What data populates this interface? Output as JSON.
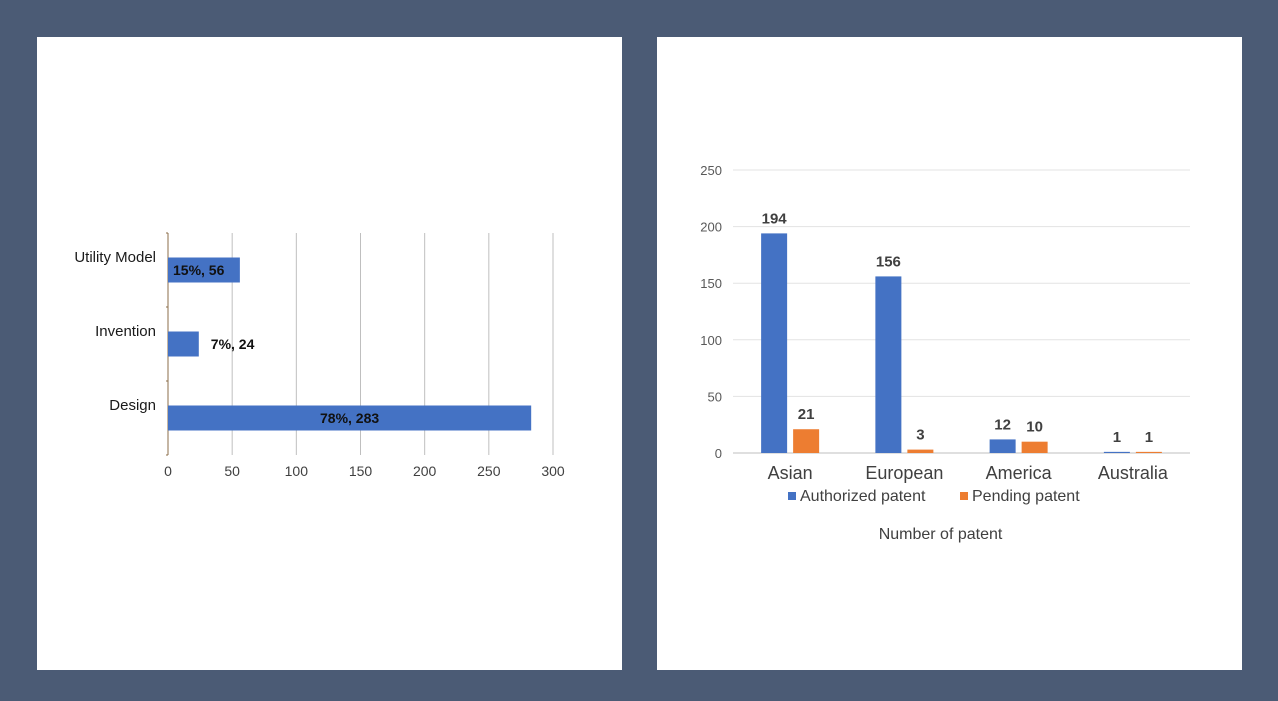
{
  "chart_data": [
    {
      "type": "bar",
      "orientation": "horizontal",
      "title": "",
      "categories": [
        "Utility Model",
        "Invention",
        "Design"
      ],
      "values": [
        56,
        24,
        283
      ],
      "percent_labels": [
        "15%",
        "7%",
        "78%"
      ],
      "data_labels": [
        "15%,  56",
        "7%,  24",
        "78%,  283"
      ],
      "x_ticks": [
        "0",
        "50",
        "100",
        "150",
        "200",
        "250",
        "300"
      ],
      "xlim": [
        0,
        300
      ],
      "grid": true,
      "bar_color": "#4472c4"
    },
    {
      "type": "bar",
      "orientation": "vertical",
      "title": "",
      "xlabel": "Number of patent",
      "categories": [
        "Asian",
        "European",
        "America",
        "Australia"
      ],
      "series": [
        {
          "name": "Authorized patent",
          "values": [
            194,
            156,
            12,
            1
          ],
          "color": "#4472c4"
        },
        {
          "name": "Pending patent",
          "values": [
            21,
            3,
            10,
            1
          ],
          "color": "#ed7d31"
        }
      ],
      "y_ticks": [
        "0",
        "50",
        "100",
        "150",
        "200",
        "250"
      ],
      "ylim": [
        0,
        250
      ],
      "grid": true,
      "legend_position": "bottom"
    }
  ]
}
